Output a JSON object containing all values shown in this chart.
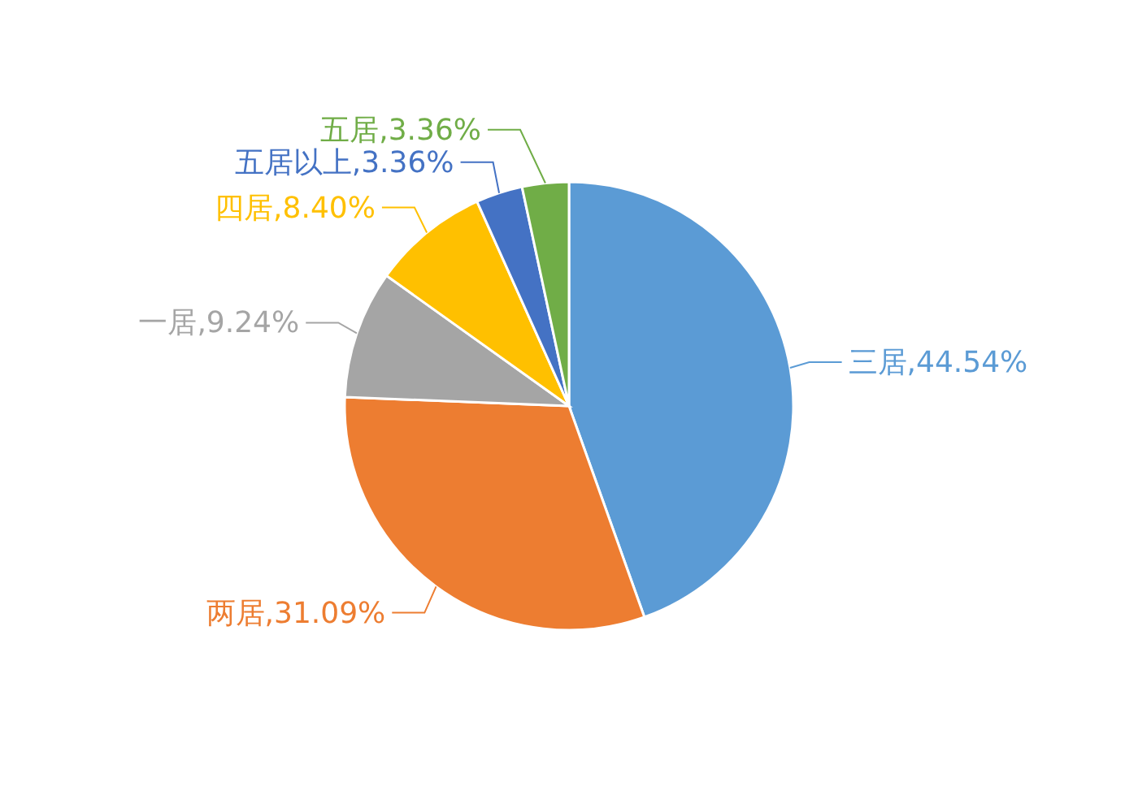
{
  "chart_data": {
    "type": "pie",
    "categories": [
      "三居",
      "两居",
      "一居",
      "四居",
      "五居以上",
      "五居"
    ],
    "values": [
      44.54,
      31.09,
      9.24,
      8.4,
      3.36,
      3.36
    ],
    "colors": [
      "#5b9bd5",
      "#ed7d31",
      "#a5a5a5",
      "#ffc000",
      "#4472c4",
      "#70ad47"
    ],
    "value_labels": [
      ",44.54%",
      ",31.09%",
      ",9.24%",
      ",8.40%",
      ",3.36%",
      ",3.36%"
    ],
    "legend": false
  }
}
